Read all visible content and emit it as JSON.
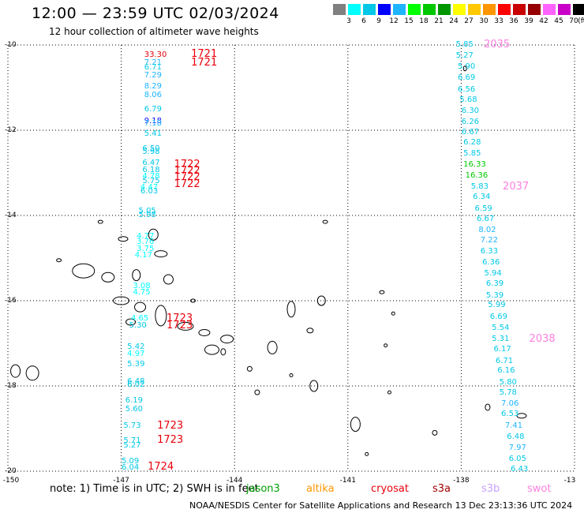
{
  "header": {
    "title": "12:00 — 23:59 UTC 02/03/2024",
    "subtitle": "12 hour collection of altimeter wave heights"
  },
  "color_scale": {
    "unit_label": "(ft)",
    "bins": [
      {
        "label": "",
        "color": "#808080"
      },
      {
        "label": "3",
        "color": "#00ffff"
      },
      {
        "label": "6",
        "color": "#00c8e6"
      },
      {
        "label": "9",
        "color": "#0000ff"
      },
      {
        "label": "12",
        "color": "#1eb4ff"
      },
      {
        "label": "15",
        "color": "#00ff00"
      },
      {
        "label": "18",
        "color": "#00c800"
      },
      {
        "label": "21",
        "color": "#009600"
      },
      {
        "label": "24",
        "color": "#ffff00"
      },
      {
        "label": "27",
        "color": "#ffc800"
      },
      {
        "label": "30",
        "color": "#ff9600"
      },
      {
        "label": "33",
        "color": "#ff0000"
      },
      {
        "label": "36",
        "color": "#c80000"
      },
      {
        "label": "39",
        "color": "#960000"
      },
      {
        "label": "42",
        "color": "#ff64ff"
      },
      {
        "label": "45",
        "color": "#c800c8"
      },
      {
        "label": "70",
        "color": "#000000"
      }
    ]
  },
  "axes": {
    "lon_ticks": [
      "-150",
      "-147",
      "-144",
      "-141",
      "-138",
      "-13"
    ],
    "lat_ticks": [
      "-10",
      "-12",
      "-14",
      "-16",
      "-18",
      "-20"
    ],
    "lon_range": [
      -150,
      -135
    ],
    "lat_range": [
      -20,
      -10
    ]
  },
  "track_west": [
    {
      "v": "33.30",
      "lon": -146.35,
      "lat": -10.24,
      "c": "#e8000b"
    },
    {
      "v": "7.21",
      "lon": -146.35,
      "lat": -10.43,
      "c": "#1eb4ff"
    },
    {
      "v": "6.71",
      "lon": -146.35,
      "lat": -10.54,
      "c": "#00c8e6"
    },
    {
      "v": "7.29",
      "lon": -146.35,
      "lat": -10.72,
      "c": "#1eb4ff"
    },
    {
      "v": "8.29",
      "lon": -146.35,
      "lat": -10.98,
      "c": "#1eb4ff"
    },
    {
      "v": "8.06",
      "lon": -146.35,
      "lat": -11.19,
      "c": "#1eb4ff"
    },
    {
      "v": "6.79",
      "lon": -146.35,
      "lat": -11.52,
      "c": "#00c8e6"
    },
    {
      "v": "9.18",
      "lon": -146.35,
      "lat": -11.79,
      "c": "#0000ff"
    },
    {
      "v": "7.18",
      "lon": -146.35,
      "lat": -11.86,
      "c": "#1eb4ff"
    },
    {
      "v": "5.41",
      "lon": -146.35,
      "lat": -12.1,
      "c": "#00c8e6"
    },
    {
      "v": "6.50",
      "lon": -146.4,
      "lat": -12.45,
      "c": "#00c8e6"
    },
    {
      "v": "5.98",
      "lon": -146.4,
      "lat": -12.52,
      "c": "#00c8e6"
    },
    {
      "v": "6.47",
      "lon": -146.4,
      "lat": -12.78,
      "c": "#00c8e6"
    },
    {
      "v": "6.18",
      "lon": -146.4,
      "lat": -12.95,
      "c": "#00c8e6"
    },
    {
      "v": "4.78",
      "lon": -146.4,
      "lat": -13.1,
      "c": "#00ffff"
    },
    {
      "v": "5.75",
      "lon": -146.4,
      "lat": -13.2,
      "c": "#00c8e6"
    },
    {
      "v": "4.47",
      "lon": -146.45,
      "lat": -13.35,
      "c": "#00ffff"
    },
    {
      "v": "6.03",
      "lon": -146.45,
      "lat": -13.45,
      "c": "#00c8e6"
    },
    {
      "v": "5.05",
      "lon": -146.5,
      "lat": -13.9,
      "c": "#00c8e6"
    },
    {
      "v": "5.98",
      "lon": -146.5,
      "lat": -14.0,
      "c": "#00c8e6"
    },
    {
      "v": "4.77",
      "lon": -146.55,
      "lat": -14.5,
      "c": "#00ffff"
    },
    {
      "v": "3.76",
      "lon": -146.55,
      "lat": -14.63,
      "c": "#00ffff"
    },
    {
      "v": "3.75",
      "lon": -146.55,
      "lat": -14.8,
      "c": "#00ffff"
    },
    {
      "v": "4.17",
      "lon": -146.6,
      "lat": -14.95,
      "c": "#00ffff"
    },
    {
      "v": "3.08",
      "lon": -146.65,
      "lat": -15.67,
      "c": "#00ffff"
    },
    {
      "v": "4.75",
      "lon": -146.65,
      "lat": -15.82,
      "c": "#00ffff"
    },
    {
      "v": "4.65",
      "lon": -146.7,
      "lat": -16.42,
      "c": "#00ffff"
    },
    {
      "v": "5.30",
      "lon": -146.75,
      "lat": -16.6,
      "c": "#00c8e6"
    },
    {
      "v": "5.42",
      "lon": -146.8,
      "lat": -17.1,
      "c": "#00c8e6"
    },
    {
      "v": "4.97",
      "lon": -146.8,
      "lat": -17.25,
      "c": "#00ffff"
    },
    {
      "v": "5.39",
      "lon": -146.8,
      "lat": -17.5,
      "c": "#00c8e6"
    },
    {
      "v": "6.48",
      "lon": -146.8,
      "lat": -17.9,
      "c": "#00c8e6"
    },
    {
      "v": "6.02",
      "lon": -146.8,
      "lat": -17.98,
      "c": "#00c8e6"
    },
    {
      "v": "6.19",
      "lon": -146.85,
      "lat": -18.35,
      "c": "#00c8e6"
    },
    {
      "v": "5.60",
      "lon": -146.85,
      "lat": -18.55,
      "c": "#00c8e6"
    },
    {
      "v": "5.73",
      "lon": -146.9,
      "lat": -18.95,
      "c": "#00c8e6"
    },
    {
      "v": "5.71",
      "lon": -146.9,
      "lat": -19.3,
      "c": "#00c8e6"
    },
    {
      "v": "5.27",
      "lon": -146.9,
      "lat": -19.4,
      "c": "#00c8e6"
    },
    {
      "v": "5.09",
      "lon": -146.95,
      "lat": -19.78,
      "c": "#00c8e6"
    },
    {
      "v": "6.04",
      "lon": -146.95,
      "lat": -19.93,
      "c": "#00c8e6"
    }
  ],
  "track_east": [
    {
      "v": "5.85",
      "lon": -138.1,
      "lat": -10.0,
      "c": "#00c8e6"
    },
    {
      "v": "5.27",
      "lon": -138.1,
      "lat": -10.25,
      "c": "#00c8e6"
    },
    {
      "v": "5.90",
      "lon": -138.05,
      "lat": -10.52,
      "c": "#00c8e6"
    },
    {
      "v": "6.69",
      "lon": -138.05,
      "lat": -10.78,
      "c": "#00c8e6"
    },
    {
      "v": "6.56",
      "lon": -138.05,
      "lat": -11.05,
      "c": "#00c8e6"
    },
    {
      "v": "5.68",
      "lon": -138.0,
      "lat": -11.3,
      "c": "#00c8e6"
    },
    {
      "v": "6.30",
      "lon": -137.95,
      "lat": -11.55,
      "c": "#00c8e6"
    },
    {
      "v": "6.26",
      "lon": -137.95,
      "lat": -11.82,
      "c": "#00c8e6"
    },
    {
      "v": "6.67",
      "lon": -137.95,
      "lat": -12.05,
      "c": "#00c8e6"
    },
    {
      "v": "6.28",
      "lon": -137.9,
      "lat": -12.3,
      "c": "#00c8e6"
    },
    {
      "v": "5.85",
      "lon": -137.9,
      "lat": -12.55,
      "c": "#00c8e6"
    },
    {
      "v": "16.33",
      "lon": -137.9,
      "lat": -12.82,
      "c": "#00c800"
    },
    {
      "v": "16.36",
      "lon": -137.85,
      "lat": -13.07,
      "c": "#00c800"
    },
    {
      "v": "5.83",
      "lon": -137.7,
      "lat": -13.33,
      "c": "#00c8e6"
    },
    {
      "v": "6.34",
      "lon": -137.65,
      "lat": -13.58,
      "c": "#00c8e6"
    },
    {
      "v": "6.59",
      "lon": -137.6,
      "lat": -13.85,
      "c": "#00c8e6"
    },
    {
      "v": "6.67",
      "lon": -137.55,
      "lat": -14.1,
      "c": "#00c8e6"
    },
    {
      "v": "8.02",
      "lon": -137.5,
      "lat": -14.35,
      "c": "#1eb4ff"
    },
    {
      "v": "7.22",
      "lon": -137.45,
      "lat": -14.6,
      "c": "#1eb4ff"
    },
    {
      "v": "6.33",
      "lon": -137.45,
      "lat": -14.85,
      "c": "#00c8e6"
    },
    {
      "v": "6.36",
      "lon": -137.4,
      "lat": -15.12,
      "c": "#00c8e6"
    },
    {
      "v": "5.94",
      "lon": -137.35,
      "lat": -15.37,
      "c": "#00c8e6"
    },
    {
      "v": "6.39",
      "lon": -137.3,
      "lat": -15.62,
      "c": "#00c8e6"
    },
    {
      "v": "5.39",
      "lon": -137.3,
      "lat": -15.88,
      "c": "#00c8e6"
    },
    {
      "v": "5.99",
      "lon": -137.25,
      "lat": -16.12,
      "c": "#00c8e6"
    },
    {
      "v": "6.69",
      "lon": -137.2,
      "lat": -16.38,
      "c": "#00c8e6"
    },
    {
      "v": "5.54",
      "lon": -137.15,
      "lat": -16.65,
      "c": "#00c8e6"
    },
    {
      "v": "5.31",
      "lon": -137.15,
      "lat": -16.9,
      "c": "#00c8e6"
    },
    {
      "v": "6.17",
      "lon": -137.1,
      "lat": -17.15,
      "c": "#00c8e6"
    },
    {
      "v": "6.71",
      "lon": -137.05,
      "lat": -17.42,
      "c": "#00c8e6"
    },
    {
      "v": "6.16",
      "lon": -137.0,
      "lat": -17.65,
      "c": "#00c8e6"
    },
    {
      "v": "5.80",
      "lon": -136.95,
      "lat": -17.92,
      "c": "#00c8e6"
    },
    {
      "v": "5.78",
      "lon": -136.95,
      "lat": -18.17,
      "c": "#00c8e6"
    },
    {
      "v": "7.06",
      "lon": -136.9,
      "lat": -18.42,
      "c": "#1eb4ff"
    },
    {
      "v": "6.53",
      "lon": -136.9,
      "lat": -18.67,
      "c": "#00c8e6"
    },
    {
      "v": "7.41",
      "lon": -136.8,
      "lat": -18.95,
      "c": "#1eb4ff"
    },
    {
      "v": "6.48",
      "lon": -136.75,
      "lat": -19.2,
      "c": "#00c8e6"
    },
    {
      "v": "7.97",
      "lon": -136.7,
      "lat": -19.47,
      "c": "#1eb4ff"
    },
    {
      "v": "6.05",
      "lon": -136.7,
      "lat": -19.72,
      "c": "#00c8e6"
    },
    {
      "v": "6.43",
      "lon": -136.65,
      "lat": -19.97,
      "c": "#00c8e6"
    }
  ],
  "pass_times": [
    {
      "t": "1721",
      "lon": -145.15,
      "lat": -10.23,
      "c": "#e8000b"
    },
    {
      "t": "1721",
      "lon": -145.15,
      "lat": -10.43,
      "c": "#e8000b"
    },
    {
      "t": "1722",
      "lon": -145.6,
      "lat": -12.82,
      "c": "#e8000b"
    },
    {
      "t": "1722",
      "lon": -145.6,
      "lat": -12.97,
      "c": "#e8000b"
    },
    {
      "t": "1722",
      "lon": -145.6,
      "lat": -13.12,
      "c": "#e8000b"
    },
    {
      "t": "1722",
      "lon": -145.6,
      "lat": -13.27,
      "c": "#e8000b"
    },
    {
      "t": "1723",
      "lon": -145.8,
      "lat": -16.42,
      "c": "#e8000b"
    },
    {
      "t": "1723",
      "lon": -145.8,
      "lat": -16.6,
      "c": "#e8000b"
    },
    {
      "t": "1723",
      "lon": -146.05,
      "lat": -18.95,
      "c": "#e8000b"
    },
    {
      "t": "1723",
      "lon": -146.05,
      "lat": -19.28,
      "c": "#e8000b"
    },
    {
      "t": "1724",
      "lon": -146.3,
      "lat": -19.9,
      "c": "#e8000b"
    },
    {
      "t": "2035",
      "lon": -137.4,
      "lat": -10.0,
      "c": "#ff7fe0"
    },
    {
      "t": "2037",
      "lon": -136.9,
      "lat": -13.33,
      "c": "#ff7fe0"
    },
    {
      "t": "2038",
      "lon": -136.2,
      "lat": -16.9,
      "c": "#ff7fe0"
    }
  ],
  "footer": {
    "note": "note:  1) Time is in UTC;  2) SWH is in feet",
    "legend": [
      {
        "name": "jason3",
        "color": "#00a000"
      },
      {
        "name": "altika",
        "color": "#ff9600"
      },
      {
        "name": "cryosat",
        "color": "#e8000b"
      },
      {
        "name": "s3a",
        "color": "#a00000"
      },
      {
        "name": "s3b",
        "color": "#c8a0ff"
      },
      {
        "name": "swot",
        "color": "#ff7fe0"
      }
    ],
    "credit": "NOAA/NESDIS Center for Satellite Applications and Research    13 Dec 23:13:36 UTC 2024"
  }
}
